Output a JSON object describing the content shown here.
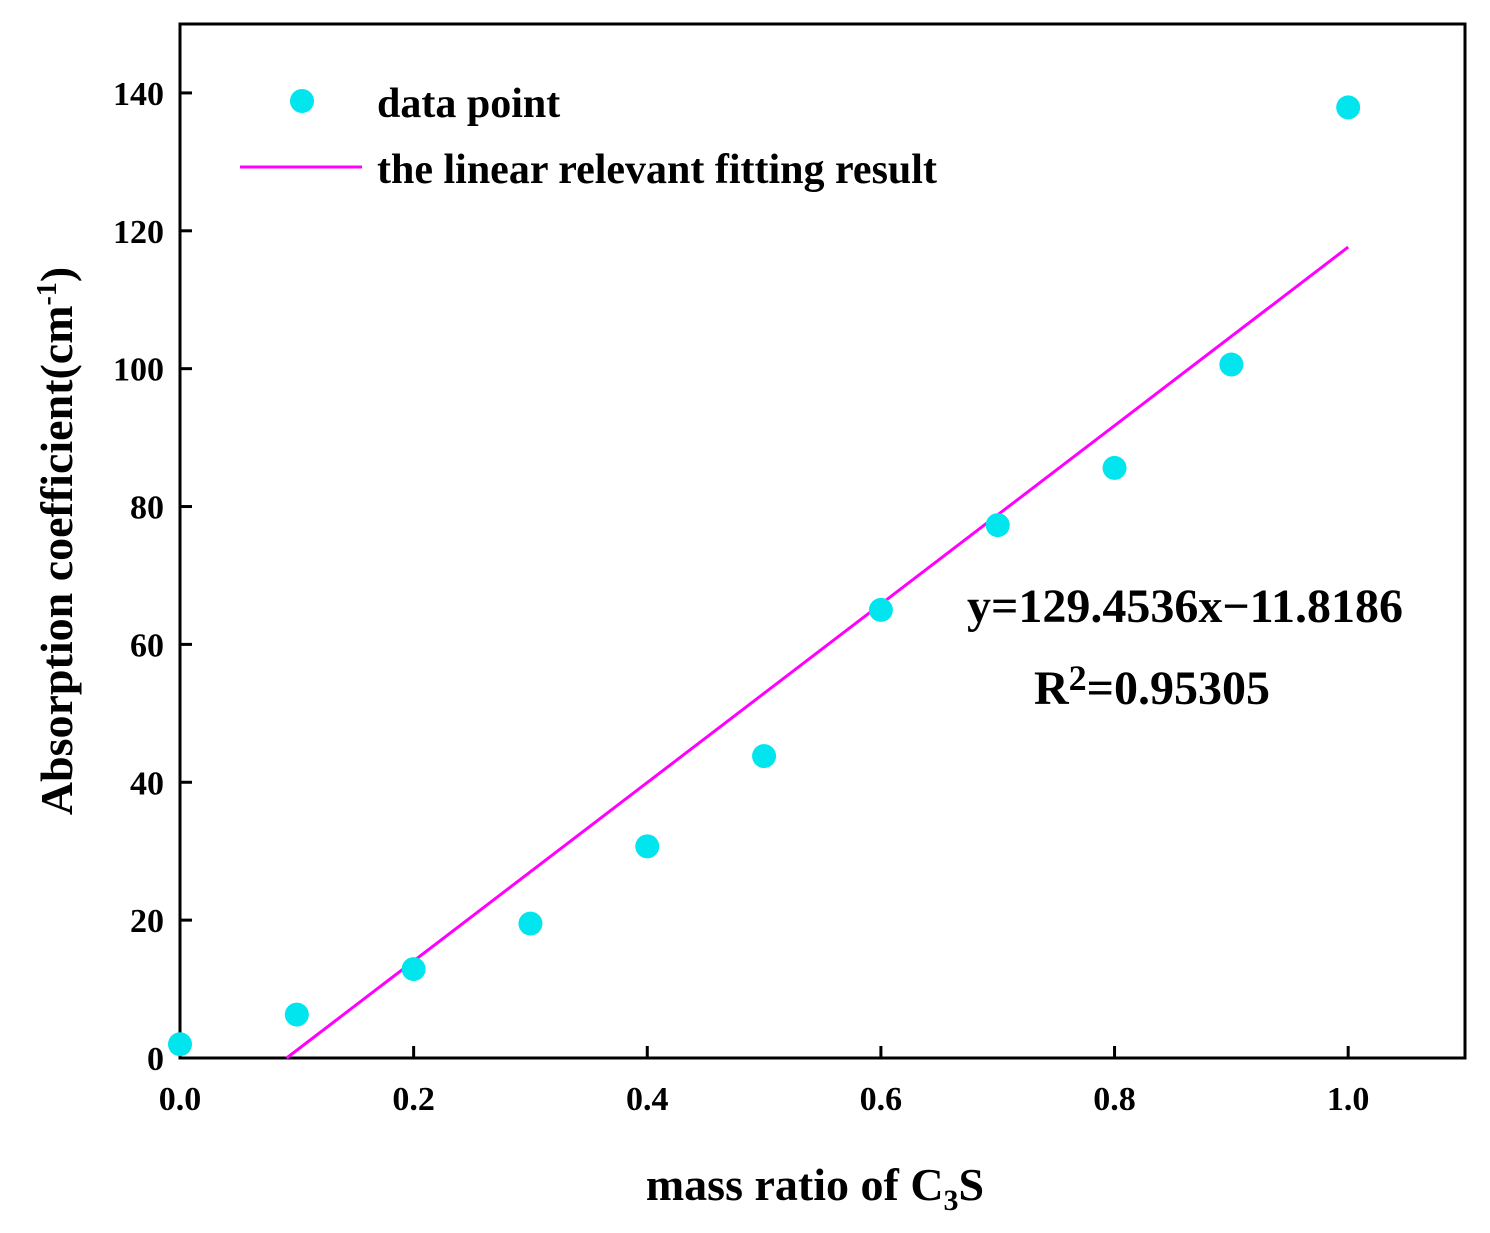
{
  "chart_data": {
    "type": "scatter",
    "title": "",
    "xlabel": {
      "main": "mass ratio of C",
      "sub": "3",
      "tail": "S"
    },
    "ylabel": {
      "main": "Absorption coefficient(cm",
      "sup": "-1",
      "tail": ")"
    },
    "xlim": [
      0.0,
      1.1
    ],
    "ylim": [
      0,
      150
    ],
    "xticks": [
      "0.0",
      "0.2",
      "0.4",
      "0.6",
      "0.8",
      "1.0"
    ],
    "yticks": [
      "0",
      "20",
      "40",
      "60",
      "80",
      "100",
      "120",
      "140"
    ],
    "series": [
      {
        "name": "data point",
        "kind": "scatter",
        "color": "#00e5ee",
        "x": [
          0.0,
          0.1,
          0.2,
          0.3,
          0.4,
          0.5,
          0.6,
          0.7,
          0.8,
          0.9,
          1.0
        ],
        "y": [
          2,
          6.3,
          12.9,
          19.5,
          30.7,
          43.8,
          65.0,
          77.3,
          85.6,
          100.6,
          137.9
        ]
      },
      {
        "name": "the linear relevant fitting result",
        "kind": "line",
        "color": "#ff00ff",
        "slope": 129.4536,
        "intercept": -11.8186,
        "x_range": [
          0.0913,
          1.0
        ]
      }
    ],
    "legend_position": "top-left",
    "annotations": {
      "equation": "y=129.4536x−11.8186",
      "r2_prefix": "R",
      "r2_sup": "2",
      "r2_value": "=0.95305"
    }
  }
}
